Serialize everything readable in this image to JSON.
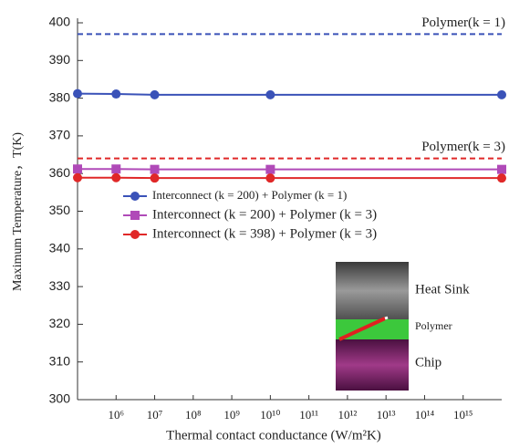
{
  "chart_data": {
    "type": "line",
    "xlabel": "Thermal contact conductance (W/m²K)",
    "ylabel": "Maximum Temperature，T(K)",
    "xscale": "log",
    "xlim": [
      100000,
      10000000000000000
    ],
    "xticks": [
      {
        "value": 1000000,
        "label": "10⁶"
      },
      {
        "value": 10000000,
        "label": "10⁷"
      },
      {
        "value": 100000000,
        "label": "10⁸"
      },
      {
        "value": 1000000000,
        "label": "10⁹"
      },
      {
        "value": 10000000000,
        "label": "10¹⁰"
      },
      {
        "value": 100000000000,
        "label": "10¹¹"
      },
      {
        "value": 1000000000000,
        "label": "10¹²"
      },
      {
        "value": 10000000000000,
        "label": "10¹³"
      },
      {
        "value": 100000000000000,
        "label": "10¹⁴"
      },
      {
        "value": 1000000000000000,
        "label": "10¹⁵"
      }
    ],
    "ylim": [
      300,
      400
    ],
    "yticks": [
      300,
      310,
      320,
      330,
      340,
      350,
      360,
      370,
      380,
      390,
      400
    ],
    "x": [
      100000,
      1000000,
      10000000,
      10000000000,
      10000000000000000
    ],
    "series": [
      {
        "name": "Interconnect (k = 200) + Polymer (k = 1)",
        "color": "#3a52b8",
        "marker": "circle",
        "values": [
          381.2,
          381.1,
          380.9,
          380.9,
          380.9
        ]
      },
      {
        "name": "Interconnect (k = 200) + Polymer (k = 3)",
        "color": "#b04ab8",
        "marker": "square",
        "values": [
          361.2,
          361.2,
          361.1,
          361.1,
          361.1
        ]
      },
      {
        "name": "Interconnect (k = 398) + Polymer (k = 3)",
        "color": "#e02828",
        "marker": "circle",
        "values": [
          358.9,
          358.9,
          358.8,
          358.8,
          358.8
        ]
      }
    ],
    "reference_lines": [
      {
        "label": "Polymer(k = 1)",
        "value": 397,
        "color": "#3a52b8"
      },
      {
        "label": "Polymer(k = 3)",
        "value": 364,
        "color": "#e02828"
      }
    ],
    "legend": "center",
    "inset": {
      "labels": [
        "Heat Sink",
        "Polymer",
        "Chip"
      ]
    }
  }
}
